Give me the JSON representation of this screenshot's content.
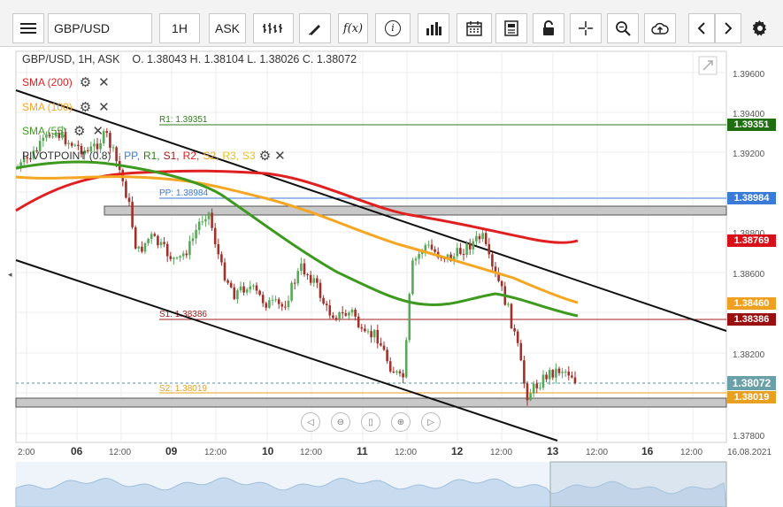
{
  "toolbar": {
    "symbol": "GBP/USD",
    "timeframe": "1H",
    "price_type": "ASK",
    "fx_label": "f(x)",
    "info_label": "i"
  },
  "ohlc_header": "GBP/USD, 1H, ASK    O. 1.38043 H. 1.38104 L. 1.38026 C. 1.38072",
  "legend": {
    "sma200": "SMA (200)",
    "sma100": "SMA (100)",
    "sma55": "SMA (55)",
    "pivot": "PIVOTPOINT (0.8)",
    "pivot_items": [
      ": PP,",
      "R1,",
      "S1,",
      "R2,",
      "S2,",
      "R3,",
      "S3"
    ]
  },
  "pivot_lines": {
    "r1": "R1: 1.39351",
    "pp": "PP: 1.38984",
    "s1": "S1: 1.38386",
    "s2": "S2: 1.38019"
  },
  "price_axis": [
    "1.39600",
    "1.39400",
    "1.39200",
    "1.38800",
    "1.38600",
    "1.38200",
    "1.37800"
  ],
  "price_labels": {
    "r1": "1.39351",
    "pp": "1.38984",
    "sma200": "1.38769",
    "sma100": "1.38460",
    "s1": "1.38386",
    "last": "1.38072",
    "s2": "1.38019"
  },
  "time_axis": [
    "2:00",
    "06",
    "12:00",
    "09",
    "12:00",
    "10",
    "12:00",
    "11",
    "12:00",
    "12",
    "12:00",
    "13",
    "12:00",
    "16",
    "12:00",
    "16.08.2021"
  ],
  "colors": {
    "sma200": "#e02020",
    "sma100": "#f5a623",
    "sma55": "#3d9a1e",
    "r1": "#2e7d1a",
    "pp": "#3b7bd8",
    "s1": "#a01c1c",
    "s2": "#e8a020",
    "bull": "#58a85a",
    "bear": "#a0302a"
  }
}
